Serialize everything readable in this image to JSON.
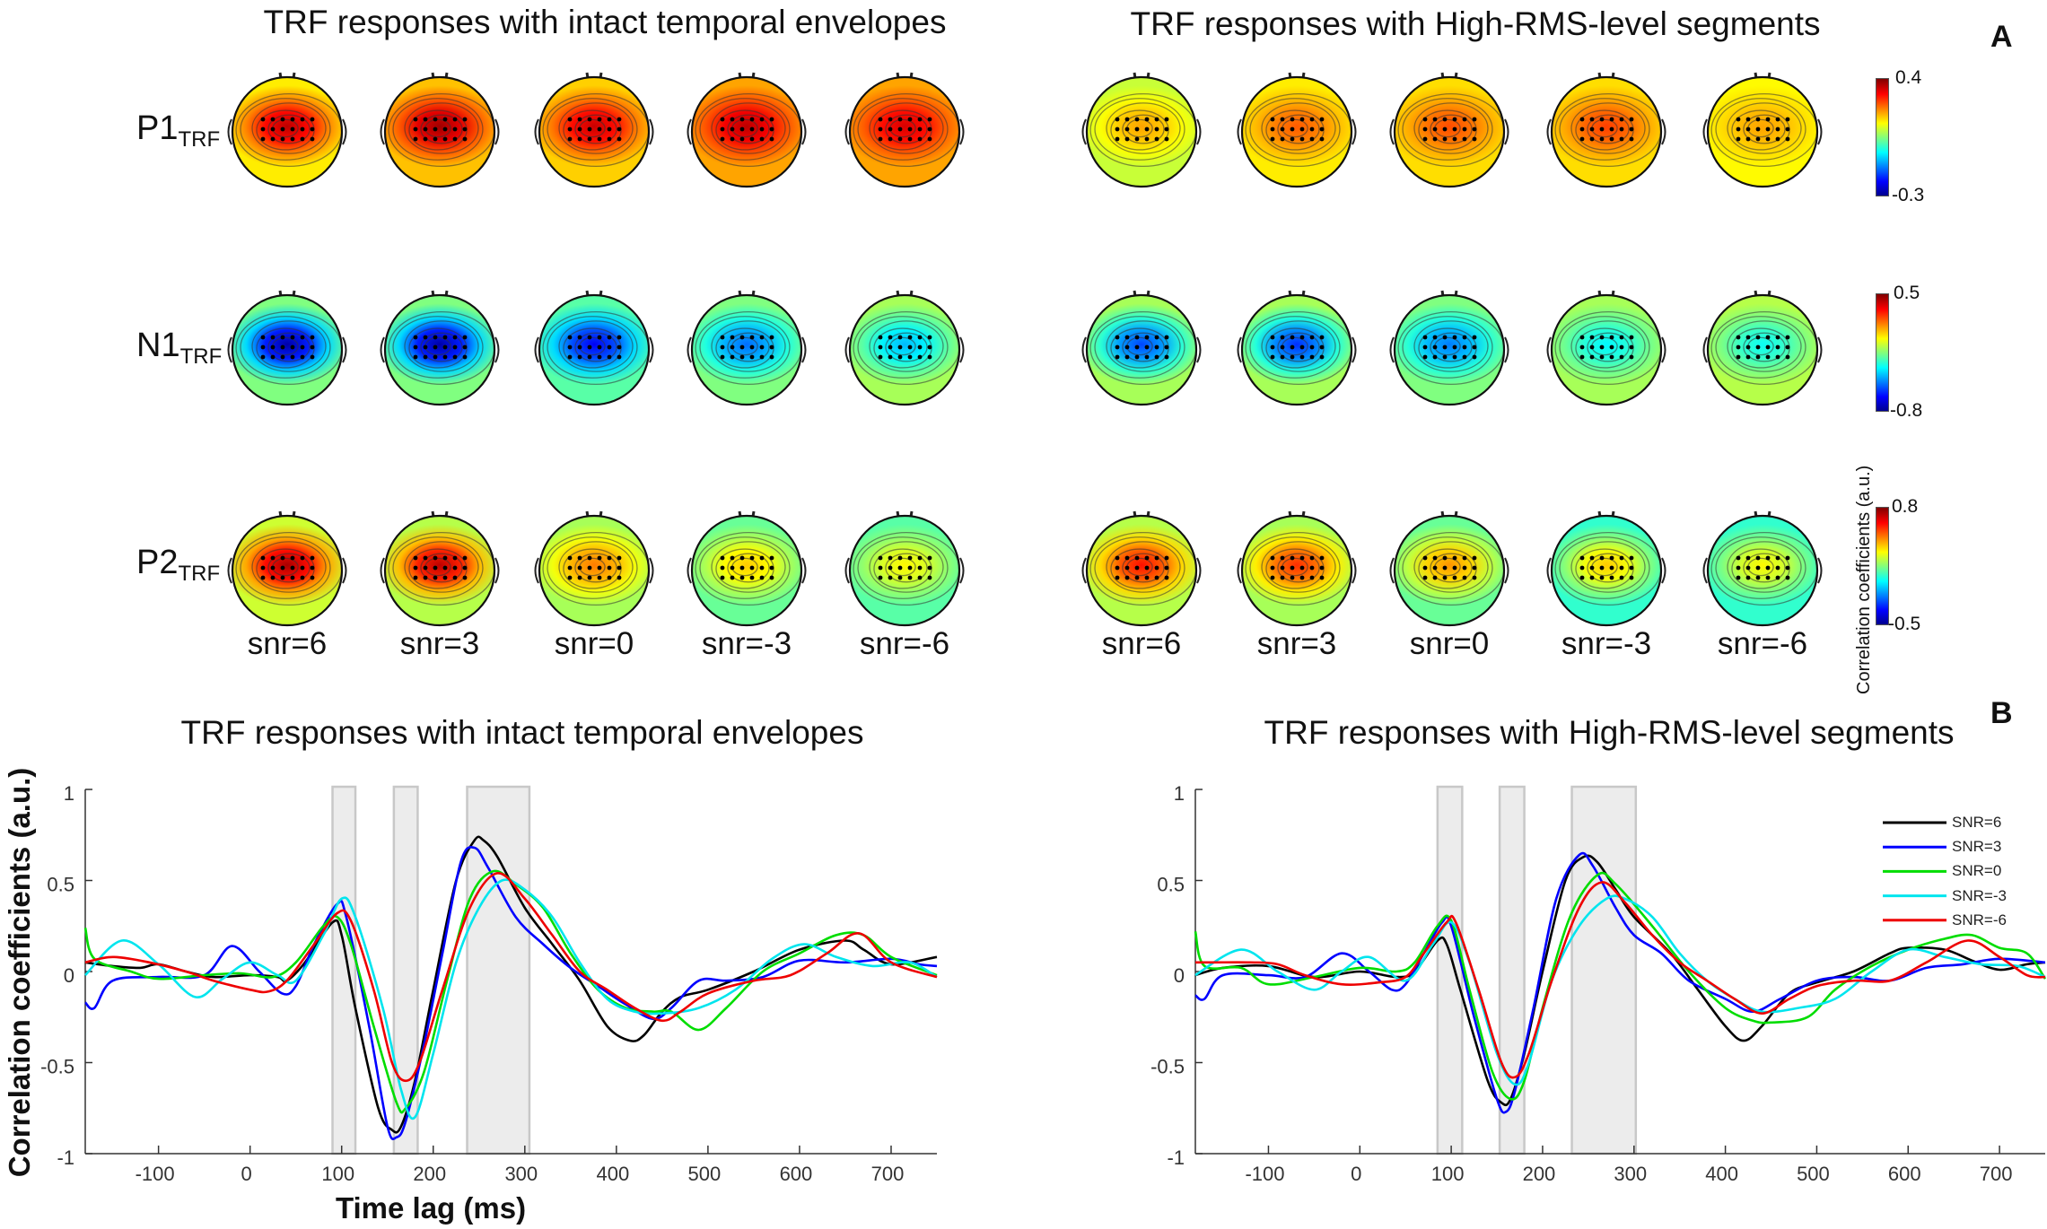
{
  "panel_a": {
    "letter": "A",
    "left_title": "TRF responses with intact temporal envelopes",
    "right_title": "TRF responses with High-RMS-level segments",
    "rows": [
      {
        "label": "P1",
        "sub": "TRF"
      },
      {
        "label": "N1",
        "sub": "TRF"
      },
      {
        "label": "P2",
        "sub": "TRF"
      }
    ],
    "conditions": [
      "snr=6",
      "snr=3",
      "snr=0",
      "snr=-3",
      "snr=-6"
    ],
    "colorbar_label": "Correlation coefficients (a.u.)",
    "colorbars": [
      {
        "max": "0.4",
        "min": "-0.3"
      },
      {
        "max": "0.5",
        "min": "-0.8"
      },
      {
        "max": "0.8",
        "min": "-0.5"
      }
    ],
    "colormap": "jet",
    "topomaps": {
      "intact": [
        {
          "range": [
            -0.3,
            0.4
          ],
          "center": [
            0.36,
            0.38,
            0.35,
            0.36,
            0.34
          ],
          "periphery": [
            0.15,
            0.18,
            0.17,
            0.2,
            0.2
          ]
        },
        {
          "range": [
            -0.8,
            0.5
          ],
          "center": [
            -0.75,
            -0.75,
            -0.65,
            -0.5,
            -0.4
          ],
          "periphery": [
            -0.15,
            -0.15,
            -0.2,
            -0.15,
            -0.1
          ]
        },
        {
          "range": [
            -0.5,
            0.8
          ],
          "center": [
            0.75,
            0.72,
            0.48,
            0.38,
            0.32
          ],
          "periphery": [
            0.25,
            0.22,
            0.2,
            0.12,
            0.1
          ]
        }
      ],
      "high_rms": [
        {
          "range": [
            -0.3,
            0.4
          ],
          "center": [
            0.2,
            0.25,
            0.26,
            0.27,
            0.2
          ],
          "periphery": [
            0.1,
            0.15,
            0.16,
            0.16,
            0.14
          ]
        },
        {
          "range": [
            -0.8,
            0.5
          ],
          "center": [
            -0.55,
            -0.58,
            -0.48,
            -0.32,
            -0.3
          ],
          "periphery": [
            -0.1,
            -0.1,
            -0.15,
            -0.1,
            -0.08
          ]
        },
        {
          "range": [
            -0.5,
            0.8
          ],
          "center": [
            0.62,
            0.58,
            0.45,
            0.38,
            0.32
          ],
          "periphery": [
            0.22,
            0.2,
            0.12,
            0.05,
            0.05
          ]
        }
      ]
    }
  },
  "panel_b": {
    "letter": "B"
  },
  "chart_data": [
    {
      "type": "line",
      "title": "TRF responses with intact temporal envelopes",
      "xlabel": "Time lag (ms)",
      "ylabel": "Correlation coefficients (a.u.)",
      "xlim": [
        -180,
        750
      ],
      "ylim": [
        -1,
        1
      ],
      "xticks": [
        -100,
        0,
        100,
        200,
        300,
        400,
        500,
        600,
        700
      ],
      "yticks": [
        1,
        0.5,
        0,
        -0.5,
        -1
      ],
      "ytick_labels": [
        "1",
        "0.5",
        "0",
        "-0.5",
        "-1"
      ],
      "grid": false,
      "shaded_windows_ms": [
        [
          90,
          115
        ],
        [
          157,
          183
        ],
        [
          237,
          305
        ]
      ],
      "series": [
        {
          "color": "#000000",
          "x": [
            -180,
            -150,
            -120,
            -100,
            -70,
            -40,
            0,
            30,
            40,
            60,
            90,
            100,
            115,
            140,
            155,
            165,
            180,
            200,
            225,
            245,
            255,
            270,
            300,
            330,
            360,
            390,
            415,
            430,
            450,
            470,
            500,
            550,
            600,
            650,
            670,
            700,
            750
          ],
          "y": [
            0.05,
            0.03,
            0.02,
            0.04,
            0.0,
            -0.03,
            -0.02,
            -0.03,
            -0.05,
            0.05,
            0.27,
            0.2,
            -0.2,
            -0.75,
            -0.87,
            -0.85,
            -0.6,
            -0.1,
            0.5,
            0.72,
            0.72,
            0.63,
            0.35,
            0.15,
            -0.05,
            -0.3,
            -0.38,
            -0.35,
            -0.22,
            -0.14,
            -0.1,
            0.0,
            0.12,
            0.17,
            0.12,
            0.04,
            0.08
          ]
        },
        {
          "color": "#0000ff",
          "x": [
            -180,
            -170,
            -150,
            -100,
            -50,
            -20,
            10,
            35,
            50,
            70,
            95,
            105,
            130,
            150,
            160,
            170,
            190,
            210,
            230,
            245,
            260,
            290,
            320,
            350,
            380,
            410,
            440,
            460,
            490,
            520,
            560,
            600,
            650,
            700,
            730,
            750
          ],
          "y": [
            -0.17,
            -0.2,
            -0.05,
            -0.03,
            -0.02,
            0.14,
            0.0,
            -0.12,
            -0.08,
            0.15,
            0.37,
            0.3,
            -0.3,
            -0.85,
            -0.91,
            -0.82,
            -0.4,
            0.1,
            0.6,
            0.68,
            0.57,
            0.3,
            0.15,
            0.02,
            -0.08,
            -0.18,
            -0.26,
            -0.2,
            -0.05,
            -0.05,
            -0.03,
            0.06,
            0.05,
            0.07,
            0.04,
            0.03
          ]
        },
        {
          "color": "#00dd00",
          "x": [
            -180,
            -170,
            -130,
            -100,
            -50,
            -10,
            25,
            50,
            80,
            95,
            110,
            135,
            160,
            170,
            190,
            215,
            240,
            265,
            290,
            320,
            350,
            380,
            410,
            440,
            460,
            490,
            520,
            560,
            600,
            640,
            670,
            700,
            750
          ],
          "y": [
            0.24,
            0.07,
            0.0,
            -0.04,
            -0.02,
            -0.01,
            -0.03,
            0.05,
            0.25,
            0.3,
            0.15,
            -0.3,
            -0.72,
            -0.75,
            -0.55,
            -0.05,
            0.4,
            0.55,
            0.48,
            0.35,
            0.1,
            -0.1,
            -0.2,
            -0.22,
            -0.22,
            -0.32,
            -0.2,
            0.0,
            0.1,
            0.2,
            0.2,
            0.08,
            -0.02
          ]
        },
        {
          "color": "#00e5ee",
          "x": [
            -180,
            -140,
            -100,
            -60,
            -30,
            0,
            30,
            50,
            80,
            100,
            115,
            145,
            165,
            180,
            200,
            225,
            250,
            275,
            300,
            330,
            360,
            390,
            420,
            450,
            490,
            530,
            570,
            605,
            640,
            680,
            720,
            750
          ],
          "y": [
            -0.02,
            0.17,
            0.04,
            -0.14,
            -0.04,
            0.05,
            -0.02,
            -0.05,
            0.2,
            0.4,
            0.3,
            -0.2,
            -0.65,
            -0.8,
            -0.45,
            0.05,
            0.35,
            0.5,
            0.45,
            0.3,
            0.05,
            -0.15,
            -0.22,
            -0.23,
            -0.2,
            -0.1,
            0.07,
            0.15,
            0.08,
            0.03,
            0.05,
            -0.03
          ]
        },
        {
          "color": "#ee0000",
          "x": [
            -180,
            -150,
            -110,
            -70,
            -40,
            0,
            20,
            40,
            70,
            95,
            110,
            135,
            155,
            170,
            185,
            210,
            240,
            270,
            300,
            330,
            360,
            390,
            420,
            450,
            470,
            500,
            550,
            590,
            630,
            665,
            700,
            750
          ],
          "y": [
            0.05,
            0.08,
            0.05,
            0.0,
            -0.05,
            -0.1,
            -0.11,
            -0.05,
            0.15,
            0.32,
            0.28,
            -0.1,
            -0.5,
            -0.6,
            -0.5,
            -0.1,
            0.35,
            0.54,
            0.4,
            0.2,
            0.0,
            -0.1,
            -0.2,
            -0.27,
            -0.22,
            -0.12,
            -0.05,
            -0.02,
            0.1,
            0.21,
            0.05,
            -0.03
          ]
        }
      ]
    },
    {
      "type": "line",
      "title": "TRF responses with High-RMS-level segments",
      "xlim": [
        -180,
        750
      ],
      "ylim": [
        -1,
        1
      ],
      "xticks": [
        -100,
        0,
        100,
        200,
        300,
        400,
        500,
        600,
        700
      ],
      "yticks": [
        1,
        0.5,
        0,
        -0.5,
        -1
      ],
      "ytick_labels": [
        "1",
        "0.5",
        "0",
        "-0.5",
        "-1"
      ],
      "grid": false,
      "legend_position": "top-right",
      "shaded_windows_ms": [
        [
          85,
          112
        ],
        [
          153,
          180
        ],
        [
          232,
          302
        ]
      ],
      "series": [
        {
          "name": "SNR=6",
          "color": "#000000",
          "x": [
            -180,
            -150,
            -100,
            -50,
            0,
            40,
            60,
            85,
            95,
            110,
            140,
            155,
            165,
            180,
            200,
            225,
            245,
            260,
            280,
            300,
            340,
            370,
            400,
            420,
            440,
            470,
            500,
            540,
            580,
            600,
            640,
            670,
            700,
            730,
            750
          ],
          "y": [
            -0.02,
            0.02,
            0.03,
            -0.03,
            0.0,
            -0.03,
            0.0,
            0.17,
            0.15,
            -0.1,
            -0.6,
            -0.72,
            -0.7,
            -0.45,
            0.0,
            0.5,
            0.63,
            0.6,
            0.45,
            0.3,
            0.1,
            -0.1,
            -0.3,
            -0.38,
            -0.3,
            -0.12,
            -0.06,
            0.0,
            0.1,
            0.13,
            0.12,
            0.06,
            0.01,
            0.04,
            0.05
          ]
        },
        {
          "name": "SNR=3",
          "color": "#0000ff",
          "x": [
            -180,
            -170,
            -150,
            -100,
            -60,
            -20,
            10,
            35,
            50,
            70,
            90,
            100,
            125,
            150,
            160,
            170,
            190,
            215,
            240,
            255,
            280,
            300,
            330,
            360,
            400,
            430,
            460,
            500,
            540,
            580,
            620,
            660,
            700,
            750
          ],
          "y": [
            -0.13,
            -0.15,
            -0.02,
            -0.02,
            -0.03,
            0.1,
            0.0,
            -0.1,
            -0.07,
            0.1,
            0.27,
            0.25,
            -0.25,
            -0.7,
            -0.77,
            -0.65,
            -0.2,
            0.4,
            0.64,
            0.58,
            0.35,
            0.2,
            0.1,
            -0.05,
            -0.15,
            -0.22,
            -0.15,
            -0.05,
            -0.03,
            -0.05,
            0.02,
            0.04,
            0.07,
            0.05
          ]
        },
        {
          "name": "SNR=0",
          "color": "#00dd00",
          "x": [
            -180,
            -170,
            -130,
            -100,
            -50,
            0,
            40,
            60,
            85,
            100,
            120,
            145,
            165,
            180,
            200,
            230,
            260,
            280,
            320,
            360,
            400,
            430,
            450,
            490,
            520,
            560,
            600,
            640,
            670,
            700,
            730,
            750
          ],
          "y": [
            0.22,
            0.03,
            0.02,
            -0.07,
            -0.03,
            0.02,
            0.0,
            0.05,
            0.25,
            0.28,
            -0.1,
            -0.55,
            -0.7,
            -0.6,
            -0.2,
            0.3,
            0.53,
            0.48,
            0.25,
            0.0,
            -0.2,
            -0.27,
            -0.28,
            -0.25,
            -0.1,
            0.03,
            0.12,
            0.18,
            0.2,
            0.13,
            0.1,
            -0.04
          ]
        },
        {
          "name": "SNR=-3",
          "color": "#00e5ee",
          "x": [
            -180,
            -130,
            -90,
            -50,
            -20,
            10,
            50,
            80,
            100,
            120,
            150,
            170,
            185,
            210,
            240,
            270,
            290,
            320,
            350,
            380,
            410,
            440,
            480,
            520,
            560,
            600,
            640,
            680,
            720,
            750
          ],
          "y": [
            -0.02,
            0.12,
            0.0,
            -0.1,
            0.0,
            0.08,
            -0.05,
            0.15,
            0.27,
            0.05,
            -0.45,
            -0.62,
            -0.5,
            -0.05,
            0.25,
            0.4,
            0.4,
            0.3,
            0.1,
            -0.05,
            -0.15,
            -0.22,
            -0.2,
            -0.15,
            0.0,
            0.12,
            0.08,
            0.04,
            0.03,
            -0.03
          ]
        },
        {
          "name": "SNR=-6",
          "color": "#ee0000",
          "x": [
            -180,
            -160,
            -120,
            -90,
            -60,
            -20,
            20,
            50,
            70,
            95,
            105,
            130,
            155,
            170,
            185,
            210,
            240,
            265,
            290,
            320,
            350,
            380,
            410,
            440,
            470,
            500,
            540,
            580,
            620,
            665,
            700,
            730,
            750
          ],
          "y": [
            0.05,
            0.05,
            0.05,
            0.04,
            -0.02,
            -0.07,
            -0.06,
            -0.03,
            0.1,
            0.27,
            0.27,
            -0.1,
            -0.5,
            -0.58,
            -0.45,
            -0.05,
            0.35,
            0.49,
            0.38,
            0.2,
            0.05,
            -0.05,
            -0.15,
            -0.23,
            -0.15,
            -0.08,
            -0.05,
            -0.05,
            0.05,
            0.17,
            0.08,
            -0.02,
            -0.03
          ]
        }
      ]
    }
  ]
}
